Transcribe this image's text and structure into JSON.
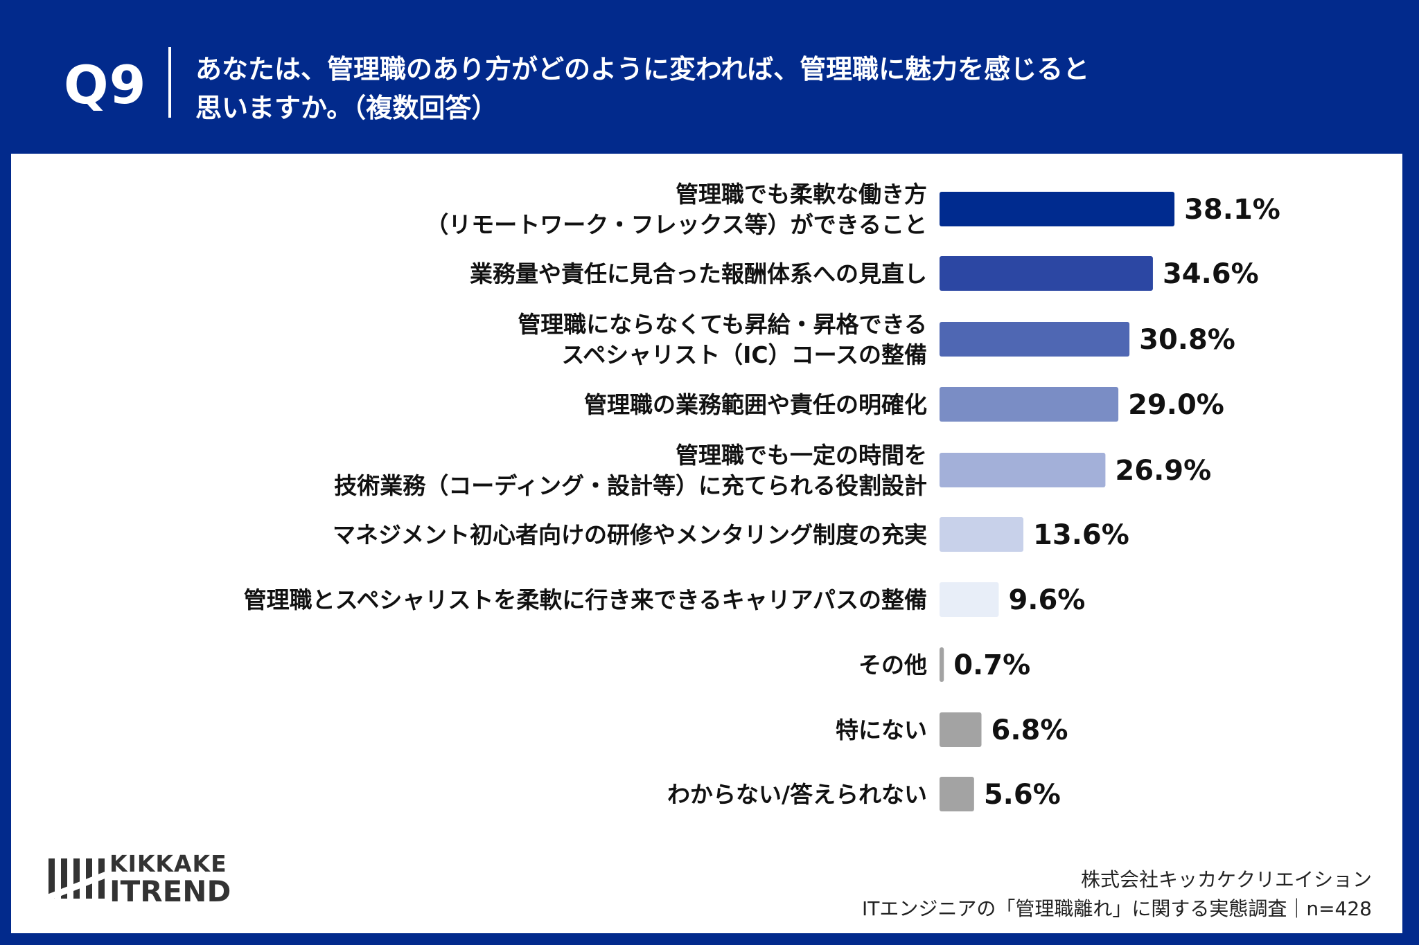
{
  "header": {
    "qnum": "Q9",
    "question_lines": [
      "あなたは、管理職のあり方がどのように変われば、管理職に魅力を感じると",
      "思いますか。（複数回答）"
    ]
  },
  "chart_data": {
    "type": "bar",
    "orientation": "horizontal",
    "categories": [
      "管理職でも柔軟な働き方（リモートワーク・フレックス等）ができること",
      "業務量や責任に見合った報酬体系への見直し",
      "管理職にならなくても昇給・昇格できるスペシャリスト（IC）コースの整備",
      "管理職の業務範囲や責任の明確化",
      "管理職でも一定の時間を技術業務（コーディング・設計等）に充てられる役割設計",
      "マネジメント初心者向けの研修やメンタリング制度の充実",
      "管理職とスペシャリストを柔軟に行き来できるキャリアパスの整備",
      "その他",
      "特にない",
      "わからない/答えられない"
    ],
    "label_lines": [
      [
        "管理職でも柔軟な働き方",
        "（リモートワーク・フレックス等）ができること"
      ],
      [
        "業務量や責任に見合った報酬体系への見直し"
      ],
      [
        "管理職にならなくても昇給・昇格できる",
        "スペシャリスト（IC）コースの整備"
      ],
      [
        "管理職の業務範囲や責任の明確化"
      ],
      [
        "管理職でも一定の時間を",
        "技術業務（コーディング・設計等）に充てられる役割設計"
      ],
      [
        "マネジメント初心者向けの研修やメンタリング制度の充実"
      ],
      [
        "管理職とスペシャリストを柔軟に行き来できるキャリアパスの整備"
      ],
      [
        "その他"
      ],
      [
        "特にない"
      ],
      [
        "わからない/答えられない"
      ]
    ],
    "values": [
      38.1,
      34.6,
      30.8,
      29.0,
      26.9,
      13.6,
      9.6,
      0.7,
      6.8,
      5.6
    ],
    "value_labels": [
      "38.1%",
      "34.6%",
      "30.8%",
      "29.0%",
      "26.9%",
      "13.6%",
      "9.6%",
      "0.7%",
      "6.8%",
      "5.6%"
    ],
    "colors": [
      "#002b8f",
      "#2c47a3",
      "#4f67b3",
      "#7a8dc5",
      "#a3b0d9",
      "#c8d1ea",
      "#e8eef8",
      "#a3a3a3",
      "#a3a3a3",
      "#a3a3a3"
    ],
    "xlim": [
      0,
      40
    ],
    "unit": "%"
  },
  "logo": {
    "line1": "KIKKAKE",
    "line2": "ITREND"
  },
  "footer": {
    "line1": "株式会社キッカケクリエイション",
    "line2": "ITエンジニアの「管理職離れ」に関する実態調査｜n=428"
  },
  "colors": {
    "header_bg": "#022a8c",
    "panel_bg": "#ffffff"
  }
}
